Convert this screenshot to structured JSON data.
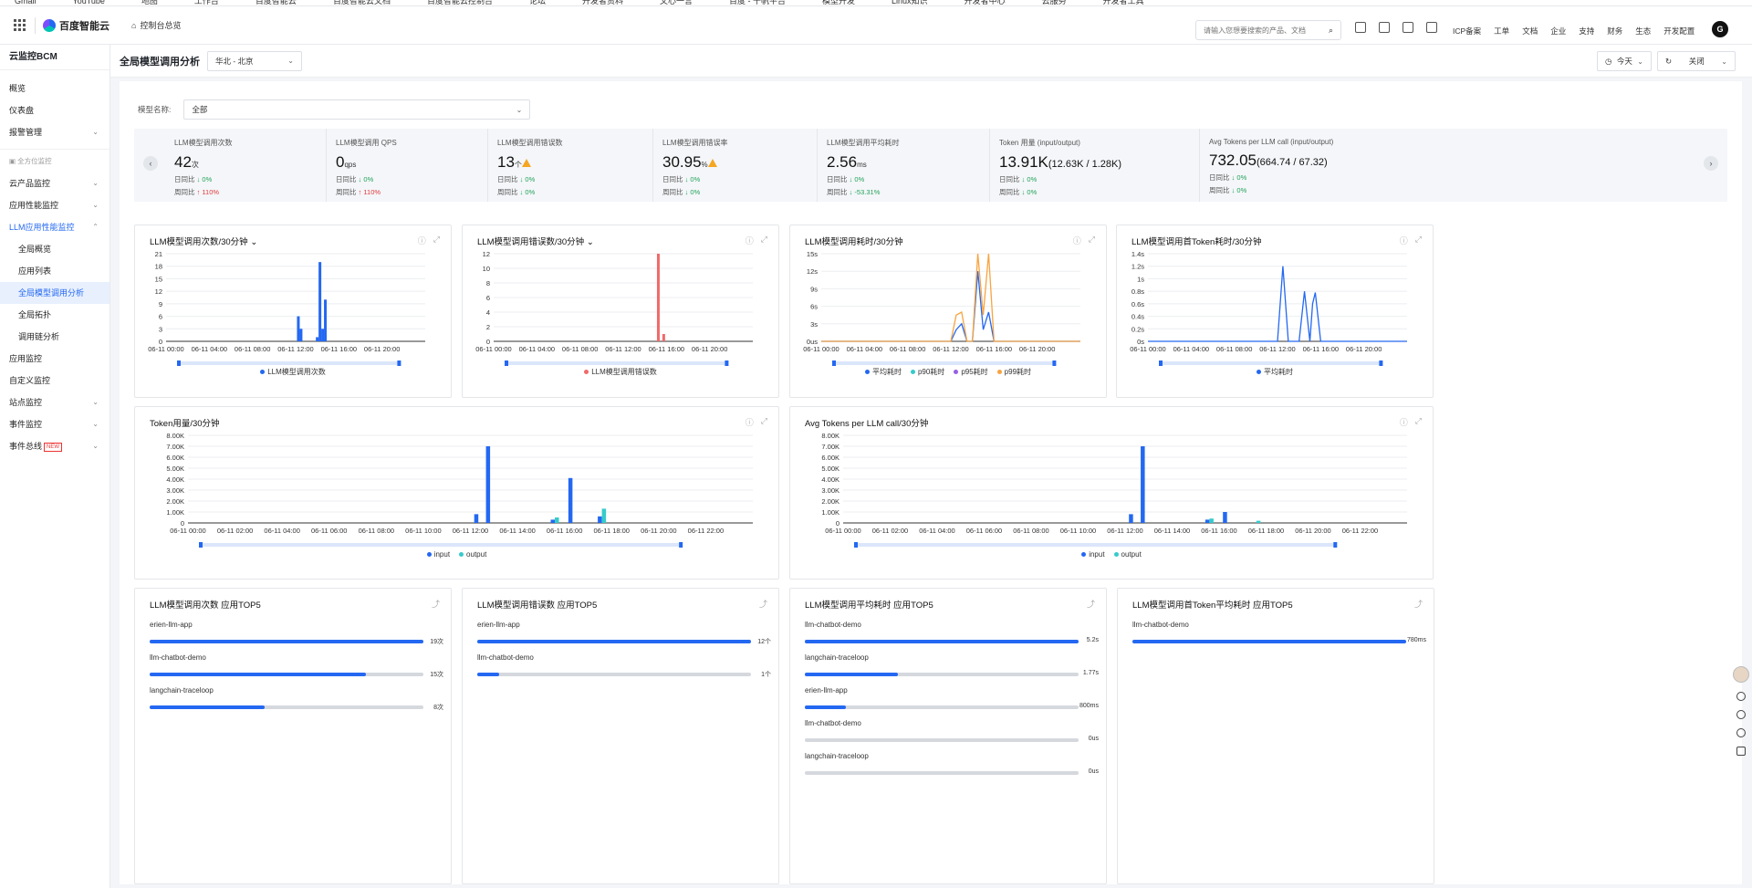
{
  "topstrip": [
    "Gmail",
    "YouTube",
    "地图",
    "工作台",
    "百度智能云",
    "百度智能云文档",
    "百度智能云控制台",
    "论坛",
    "开发者资料",
    "文心一言",
    "百度 - 千帆平台",
    "模型开发",
    "Linux知识",
    "开发者中心",
    "云服务",
    "开发者工具"
  ],
  "header": {
    "logo": "百度智能云",
    "crumb": "控制台总览",
    "search_placeholder": "请输入您想要搜索的产品、文档",
    "nav": [
      "ICP备案",
      "工单",
      "文档",
      "企业",
      "支持",
      "财务",
      "生态",
      "开发配置"
    ],
    "avatar": "G"
  },
  "sidebar": {
    "title": "云监控BCM",
    "items": [
      {
        "label": "概览",
        "sub": false,
        "chev": ""
      },
      {
        "label": "仪表盘",
        "sub": false,
        "chev": ""
      },
      {
        "label": "报警管理",
        "sub": false,
        "chev": "⌄"
      }
    ],
    "group": "全方位监控",
    "items2": [
      {
        "label": "云产品监控",
        "sub": false,
        "chev": "⌄",
        "state": ""
      },
      {
        "label": "应用性能监控",
        "sub": false,
        "chev": "⌄",
        "state": ""
      },
      {
        "label": "LLM应用性能监控",
        "sub": false,
        "chev": "⌃",
        "state": "open"
      },
      {
        "label": "全局概览",
        "sub": true,
        "chev": "",
        "state": ""
      },
      {
        "label": "应用列表",
        "sub": true,
        "chev": "",
        "state": ""
      },
      {
        "label": "全局模型调用分析",
        "sub": true,
        "chev": "",
        "state": "active"
      },
      {
        "label": "全局拓扑",
        "sub": true,
        "chev": "",
        "state": ""
      },
      {
        "label": "调用链分析",
        "sub": true,
        "chev": "",
        "state": ""
      },
      {
        "label": "应用监控",
        "sub": false,
        "chev": "",
        "state": ""
      },
      {
        "label": "自定义监控",
        "sub": false,
        "chev": "",
        "state": ""
      },
      {
        "label": "站点监控",
        "sub": false,
        "chev": "⌄",
        "state": ""
      },
      {
        "label": "事件监控",
        "sub": false,
        "chev": "⌄",
        "state": ""
      },
      {
        "label": "事件总线",
        "sub": false,
        "chev": "⌄",
        "state": "",
        "tag": "NEW"
      }
    ]
  },
  "page": {
    "title": "全局模型调用分析",
    "region": "华北 - 北京",
    "time": "今天",
    "refresh": "关闭"
  },
  "filter": {
    "label": "模型名称:",
    "value": "全部"
  },
  "kpis": [
    {
      "label": "LLM模型调用次数",
      "value": "42",
      "unit": "次",
      "paren": "",
      "warn": false,
      "day": "0%",
      "week": "110%",
      "week_dir": "up"
    },
    {
      "label": "LLM模型调用 QPS",
      "value": "0",
      "unit": "qps",
      "paren": "",
      "warn": false,
      "day": "0%",
      "week": "110%",
      "week_dir": "up"
    },
    {
      "label": "LLM模型调用错误数",
      "value": "13",
      "unit": "个",
      "paren": "",
      "warn": true,
      "day": "0%",
      "week": "0%",
      "week_dir": "down"
    },
    {
      "label": "LLM模型调用错误率",
      "value": "30.95",
      "unit": "%",
      "paren": "",
      "warn": true,
      "day": "0%",
      "week": "0%",
      "week_dir": "down"
    },
    {
      "label": "LLM模型调用平均耗时",
      "value": "2.56",
      "unit": "ms",
      "paren": "",
      "warn": false,
      "day": "0%",
      "week": "-53.31%",
      "week_dir": "down"
    },
    {
      "label": "Token 用量 (input/output)",
      "value": "13.91K",
      "unit": "",
      "paren": "(12.63K / 1.28K)",
      "warn": false,
      "day": "0%",
      "week": "0%",
      "week_dir": "down"
    },
    {
      "label": "Avg Tokens per LLM call (input/output)",
      "value": "732.05",
      "unit": "",
      "paren": "(664.74 / 67.32)",
      "warn": false,
      "day": "0%",
      "week": "0%",
      "week_dir": "down"
    }
  ],
  "kpi_row_labels": {
    "day": "日同比",
    "week": "周同比"
  },
  "charts": [
    {
      "title": "LLM模型调用次数/30分钟",
      "dropdown": true,
      "y_ticks": [
        "0",
        "3",
        "6",
        "9",
        "12",
        "15",
        "18",
        "21"
      ],
      "ymax": 21,
      "x_ticks": [
        "06-11 00:00",
        "06-11 04:00",
        "06-11 08:00",
        "06-11 12:00",
        "06-11 16:00",
        "06-11 20:00"
      ],
      "legend": [
        {
          "name": "LLM模型调用次数",
          "color": "#2468f2"
        }
      ],
      "chart_data": {
        "type": "bar",
        "series": [
          {
            "name": "LLM模型调用次数",
            "points": [
              [
                24.5,
                6
              ],
              [
                25,
                3
              ],
              [
                28,
                1
              ],
              [
                28.5,
                19
              ],
              [
                29,
                3
              ],
              [
                29.5,
                10
              ]
            ]
          }
        ]
      }
    },
    {
      "title": "LLM模型调用错误数/30分钟",
      "dropdown": true,
      "y_ticks": [
        "0",
        "2",
        "4",
        "6",
        "8",
        "10",
        "12"
      ],
      "ymax": 12,
      "x_ticks": [
        "06-11 00:00",
        "06-11 04:00",
        "06-11 08:00",
        "06-11 12:00",
        "06-11 16:00",
        "06-11 20:00"
      ],
      "legend": [
        {
          "name": "LLM模型调用错误数",
          "color": "#f06a6a"
        }
      ],
      "chart_data": {
        "type": "bar",
        "series": [
          {
            "name": "LLM模型调用错误数",
            "points": [
              [
                30.5,
                12
              ],
              [
                31.5,
                1
              ]
            ]
          }
        ]
      }
    },
    {
      "title": "LLM模型调用耗时/30分钟",
      "dropdown": false,
      "y_ticks": [
        "0us",
        "3s",
        "6s",
        "9s",
        "12s",
        "15s"
      ],
      "ymax": 15,
      "x_ticks": [
        "06-11 00:00",
        "06-11 04:00",
        "06-11 08:00",
        "06-11 12:00",
        "06-11 16:00",
        "06-11 20:00"
      ],
      "legend": [
        {
          "name": "平均耗时",
          "color": "#2468f2"
        },
        {
          "name": "p90耗时",
          "color": "#36cbcb"
        },
        {
          "name": "p95耗时",
          "color": "#975fe4"
        },
        {
          "name": "p99耗时",
          "color": "#f7a440"
        }
      ],
      "chart_data": {
        "type": "line",
        "series": [
          {
            "name": "平均耗时",
            "points": [
              [
                0,
                0
              ],
              [
                24,
                0
              ],
              [
                25,
                2
              ],
              [
                26,
                3
              ],
              [
                27,
                0
              ],
              [
                28,
                0
              ],
              [
                29,
                12
              ],
              [
                30,
                2
              ],
              [
                31,
                5
              ],
              [
                32,
                0
              ],
              [
                48,
                0
              ]
            ]
          },
          {
            "name": "p99耗时",
            "points": [
              [
                0,
                0
              ],
              [
                24,
                0
              ],
              [
                25,
                4.5
              ],
              [
                26,
                5
              ],
              [
                27,
                0
              ],
              [
                28,
                0
              ],
              [
                29,
                15
              ],
              [
                30,
                4.5
              ],
              [
                31,
                15
              ],
              [
                32,
                0
              ],
              [
                48,
                0
              ]
            ]
          }
        ]
      }
    },
    {
      "title": "LLM模型调用首Token耗时/30分钟",
      "dropdown": false,
      "y_ticks": [
        "0s",
        "0.2s",
        "0.4s",
        "0.6s",
        "0.8s",
        "1s",
        "1.2s",
        "1.4s"
      ],
      "ymax": 1.4,
      "x_ticks": [
        "06-11 00:00",
        "06-11 04:00",
        "06-11 08:00",
        "06-11 12:00",
        "06-11 16:00",
        "06-11 20:00"
      ],
      "legend": [
        {
          "name": "平均耗时",
          "color": "#2468f2"
        }
      ],
      "chart_data": {
        "type": "line",
        "series": [
          {
            "name": "平均耗时",
            "points": [
              [
                0,
                0
              ],
              [
                24,
                0
              ],
              [
                25,
                1.2
              ],
              [
                26,
                0
              ],
              [
                28,
                0
              ],
              [
                29,
                0.8
              ],
              [
                30,
                0
              ],
              [
                30.5,
                0.6
              ],
              [
                31,
                0.78
              ],
              [
                32,
                0
              ],
              [
                48,
                0
              ]
            ]
          }
        ]
      }
    },
    {
      "title": "Token用量/30分钟",
      "dropdown": false,
      "y_ticks": [
        "0",
        "1.00K",
        "2.00K",
        "3.00K",
        "4.00K",
        "5.00K",
        "6.00K",
        "7.00K",
        "8.00K"
      ],
      "ymax": 8,
      "x_ticks": [
        "06-11 00:00",
        "06-11 02:00",
        "06-11 04:00",
        "06-11 06:00",
        "06-11 08:00",
        "06-11 10:00",
        "06-11 12:00",
        "06-11 14:00",
        "06-11 16:00",
        "06-11 18:00",
        "06-11 20:00",
        "06-11 22:00"
      ],
      "legend": [
        {
          "name": "input",
          "color": "#2468f2"
        },
        {
          "name": "output",
          "color": "#36cbcb"
        }
      ],
      "chart_data": {
        "type": "bar",
        "series": [
          {
            "name": "input",
            "points": [
              [
                24.5,
                0.8
              ],
              [
                25.5,
                7
              ],
              [
                31,
                0.3
              ],
              [
                32.5,
                4.1
              ],
              [
                35,
                0.6
              ]
            ]
          },
          {
            "name": "output",
            "points": [
              [
                31,
                0.5
              ],
              [
                35,
                1.3
              ]
            ]
          }
        ]
      }
    },
    {
      "title": "Avg Tokens per LLM call/30分钟",
      "dropdown": false,
      "y_ticks": [
        "0",
        "1.00K",
        "2.00K",
        "3.00K",
        "4.00K",
        "5.00K",
        "6.00K",
        "7.00K",
        "8.00K"
      ],
      "ymax": 8,
      "x_ticks": [
        "06-11 00:00",
        "06-11 02:00",
        "06-11 04:00",
        "06-11 06:00",
        "06-11 08:00",
        "06-11 10:00",
        "06-11 12:00",
        "06-11 14:00",
        "06-11 16:00",
        "06-11 18:00",
        "06-11 20:00",
        "06-11 22:00"
      ],
      "legend": [
        {
          "name": "input",
          "color": "#2468f2"
        },
        {
          "name": "output",
          "color": "#36cbcb"
        }
      ],
      "chart_data": {
        "type": "bar",
        "series": [
          {
            "name": "input",
            "points": [
              [
                24.5,
                0.8
              ],
              [
                25.5,
                7
              ],
              [
                31,
                0.3
              ],
              [
                32.5,
                1
              ]
            ]
          },
          {
            "name": "output",
            "points": [
              [
                31,
                0.4
              ],
              [
                35,
                0.2
              ]
            ]
          }
        ]
      }
    }
  ],
  "top5": [
    {
      "title": "LLM模型调用次数 应用TOP5",
      "rows": [
        {
          "name": "erien-llm-app",
          "pct": 1,
          "val": "19次"
        },
        {
          "name": "llm-chatbot-demo",
          "pct": 0.79,
          "val": "15次"
        },
        {
          "name": "langchain-traceloop",
          "pct": 0.42,
          "val": "8次"
        }
      ]
    },
    {
      "title": "LLM模型调用错误数 应用TOP5",
      "rows": [
        {
          "name": "erien-llm-app",
          "pct": 1,
          "val": "12个"
        },
        {
          "name": "llm-chatbot-demo",
          "pct": 0.08,
          "val": "1个"
        }
      ]
    },
    {
      "title": "LLM模型调用平均耗时 应用TOP5",
      "rows": [
        {
          "name": "llm-chatbot-demo",
          "pct": 1,
          "val": "5.2s"
        },
        {
          "name": "langchain-traceloop",
          "pct": 0.34,
          "val": "1.77s"
        },
        {
          "name": "erien-llm-app",
          "pct": 0.15,
          "val": "800ms"
        },
        {
          "name": "llm-chatbot-demo",
          "pct": 0,
          "val": "0us"
        },
        {
          "name": "langchain-traceloop",
          "pct": 0,
          "val": "0us"
        }
      ]
    },
    {
      "title": "LLM模型调用首Token平均耗时 应用TOP5",
      "rows": [
        {
          "name": "llm-chatbot-demo",
          "pct": 1,
          "val": "780ms"
        }
      ]
    }
  ]
}
